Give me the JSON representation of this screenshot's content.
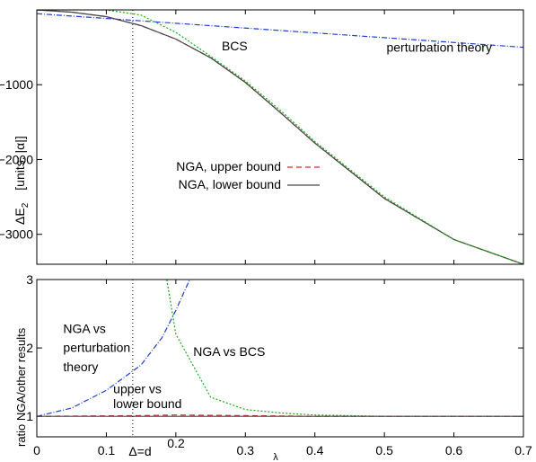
{
  "chart_data": [
    {
      "type": "line",
      "ylabel": "ΔE",
      "ylabel_sub": "2",
      "ylabel_units": "[units: |α|]",
      "xlim": [
        0,
        0.7
      ],
      "ylim": [
        -3400,
        0
      ],
      "yticks": [
        -1000,
        -2000,
        -3000
      ],
      "ytick_labels": [
        "−1000",
        "−2000",
        "−3000"
      ],
      "xticks": [
        0.1,
        0.2,
        0.3,
        0.4,
        0.5,
        0.6
      ],
      "vline_x": 0.138,
      "series": [
        {
          "name": "NGA, upper bound",
          "color": "#e0202a",
          "dash": "6,4",
          "x": [
            0.0,
            0.05,
            0.1,
            0.15,
            0.2,
            0.25,
            0.3,
            0.35,
            0.4,
            0.5,
            0.6,
            0.7
          ],
          "y": [
            0,
            -30,
            -90,
            -210,
            -390,
            -640,
            -970,
            -1370,
            -1780,
            -2520,
            -3070,
            -3400
          ]
        },
        {
          "name": "NGA, lower bound",
          "color": "#444444",
          "dash": "",
          "x": [
            0.0,
            0.05,
            0.1,
            0.15,
            0.2,
            0.25,
            0.3,
            0.35,
            0.4,
            0.5,
            0.6,
            0.7
          ],
          "y": [
            0,
            -30,
            -90,
            -210,
            -390,
            -640,
            -970,
            -1370,
            -1780,
            -2520,
            -3070,
            -3400
          ]
        },
        {
          "name": "",
          "color": "#1aa81a",
          "dash": "2,2",
          "x": [
            0.0,
            0.1,
            0.15,
            0.2,
            0.25,
            0.3,
            0.35,
            0.4,
            0.5,
            0.6,
            0.7
          ],
          "y": [
            0,
            0,
            -70,
            -300,
            -620,
            -950,
            -1340,
            -1760,
            -2500,
            -3070,
            -3400
          ]
        },
        {
          "name": "",
          "color": "#1a3ed6",
          "dash": "6,2,1,2",
          "x": [
            0.0,
            0.7
          ],
          "y": [
            -50,
            -500
          ]
        }
      ],
      "annotations": [
        {
          "text": "BCS",
          "x": 0.266,
          "y": -540
        },
        {
          "text": "perturbation theory",
          "x": 0.503,
          "y": -560
        }
      ]
    },
    {
      "type": "line",
      "ylabel": "ratio NGA/other results",
      "xlabel": "λ",
      "xlim": [
        0,
        0.7
      ],
      "ylim": [
        0.7,
        3
      ],
      "yticks": [
        1,
        2,
        3
      ],
      "ytick_labels": [
        "1",
        "2",
        "3"
      ],
      "xticks": [
        0,
        0.1,
        0.2,
        0.3,
        0.4,
        0.5,
        0.6,
        0.7
      ],
      "xtick_labels": [
        "0",
        "0.1",
        "",
        "0.3",
        "0.4",
        "0.5",
        "0.6",
        "0.7"
      ],
      "vline_x": 0.138,
      "vline_label": "Δ=d",
      "special_tick_label": "0.2",
      "series": [
        {
          "name": "",
          "color": "#1a3ed6",
          "dash": "6,2,1,2",
          "x": [
            0.0,
            0.05,
            0.1,
            0.15,
            0.18,
            0.2,
            0.22
          ],
          "y": [
            1.0,
            1.12,
            1.38,
            1.75,
            2.15,
            2.55,
            3.0
          ]
        },
        {
          "name": "",
          "color": "#1aa81a",
          "dash": "2,2",
          "x": [
            0.187,
            0.2,
            0.25,
            0.3,
            0.35,
            0.4,
            0.5,
            0.6,
            0.7
          ],
          "y": [
            3.0,
            2.2,
            1.28,
            1.1,
            1.05,
            1.02,
            1.0,
            1.0,
            1.0
          ]
        },
        {
          "name": "",
          "color": "#e0202a",
          "dash": "6,4",
          "x": [
            0.0,
            0.15,
            0.2,
            0.3,
            0.4,
            0.5,
            0.7
          ],
          "y": [
            1.0,
            1.01,
            1.02,
            1.01,
            1.0,
            1.0,
            1.0
          ]
        },
        {
          "name": "",
          "color": "#444444",
          "dash": "",
          "x": [
            0.0,
            0.7
          ],
          "y": [
            1.0,
            1.0
          ]
        }
      ],
      "annotations": [
        {
          "text": "NGA vs",
          "x": 0.038,
          "y": 2.22
        },
        {
          "text": "perturbation",
          "x": 0.038,
          "y": 1.94
        },
        {
          "text": "theory",
          "x": 0.038,
          "y": 1.66
        },
        {
          "text": "NGA vs BCS",
          "x": 0.225,
          "y": 1.88
        },
        {
          "text": "upper vs",
          "x": 0.11,
          "y": 1.34
        },
        {
          "text": "lower bound",
          "x": 0.11,
          "y": 1.12
        }
      ]
    }
  ]
}
